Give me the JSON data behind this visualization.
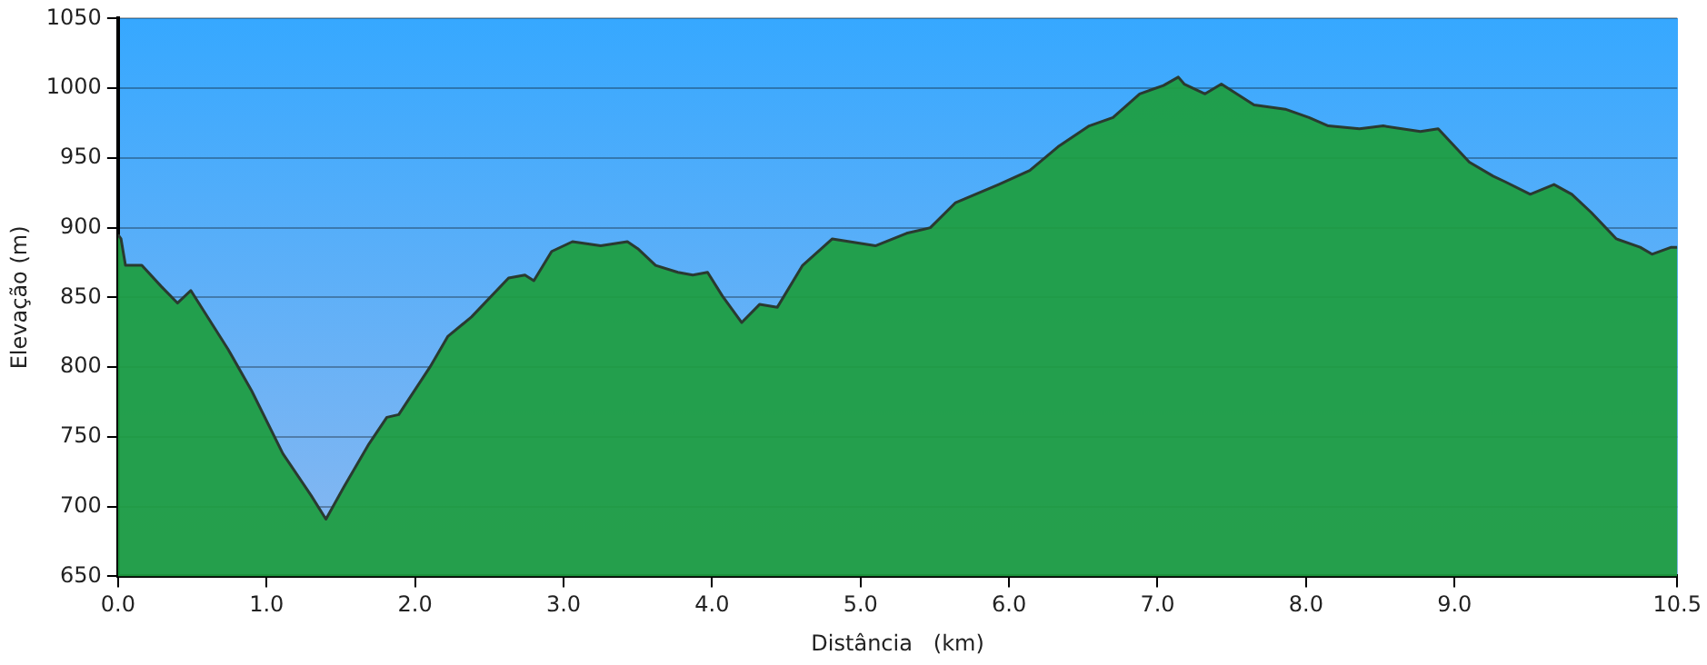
{
  "chart_data": {
    "type": "area",
    "xlabel": "Distância   (km)",
    "ylabel": "Elevação (m)",
    "x": [
      0,
      0.02,
      0.05,
      0.16,
      0.29,
      0.4,
      0.49,
      0.74,
      0.9,
      1.11,
      1.3,
      1.4,
      1.52,
      1.69,
      1.81,
      1.89,
      2.1,
      2.22,
      2.38,
      2.63,
      2.74,
      2.8,
      2.92,
      3.06,
      3.25,
      3.43,
      3.5,
      3.62,
      3.77,
      3.87,
      3.97,
      4.07,
      4.2,
      4.32,
      4.44,
      4.61,
      4.81,
      5.1,
      5.31,
      5.47,
      5.64,
      5.93,
      6.14,
      6.33,
      6.54,
      6.7,
      6.88,
      7.04,
      7.14,
      7.18,
      7.32,
      7.43,
      7.65,
      7.86,
      8.02,
      8.15,
      8.36,
      8.52,
      8.77,
      8.89,
      9.1,
      9.26,
      9.34,
      9.51,
      9.67,
      9.79,
      9.92,
      10.09,
      10.25,
      10.33,
      10.46,
      10.5
    ],
    "series": [
      {
        "color": "#1e9e40",
        "values": [
          895,
          892,
          873,
          873,
          858,
          846,
          855,
          813,
          783,
          738,
          708,
          691,
          714,
          745,
          764,
          766,
          800,
          822,
          836,
          864,
          866,
          862,
          883,
          890,
          887,
          890,
          885,
          873,
          868,
          866,
          868,
          851,
          832,
          845,
          843,
          873,
          892,
          887,
          896,
          900,
          918,
          931,
          941,
          958,
          973,
          979,
          996,
          1002,
          1008,
          1003,
          996,
          1003,
          988,
          985,
          979,
          973,
          971,
          973,
          969,
          971,
          947,
          937,
          933,
          924,
          931,
          924,
          911,
          892,
          886,
          881,
          886,
          886
        ]
      }
    ],
    "xlim": [
      0,
      10.5
    ],
    "xticks": [
      {
        "value": 0,
        "label": "0.0"
      },
      {
        "value": 1,
        "label": "1.0"
      },
      {
        "value": 2,
        "label": "2.0"
      },
      {
        "value": 3,
        "label": "3.0"
      },
      {
        "value": 4,
        "label": "4.0"
      },
      {
        "value": 5,
        "label": "5.0"
      },
      {
        "value": 6,
        "label": "6.0"
      },
      {
        "value": 7,
        "label": "7.0"
      },
      {
        "value": 8,
        "label": "8.0"
      },
      {
        "value": 9,
        "label": "9.0"
      },
      {
        "value": 10.5,
        "label": "10.5"
      }
    ],
    "ylim": [
      650,
      1050
    ],
    "yticks": [
      650,
      700,
      750,
      800,
      850,
      900,
      950,
      1000,
      1050
    ],
    "grid": "y",
    "legend": false,
    "marker": "none",
    "line_style": "solid"
  }
}
